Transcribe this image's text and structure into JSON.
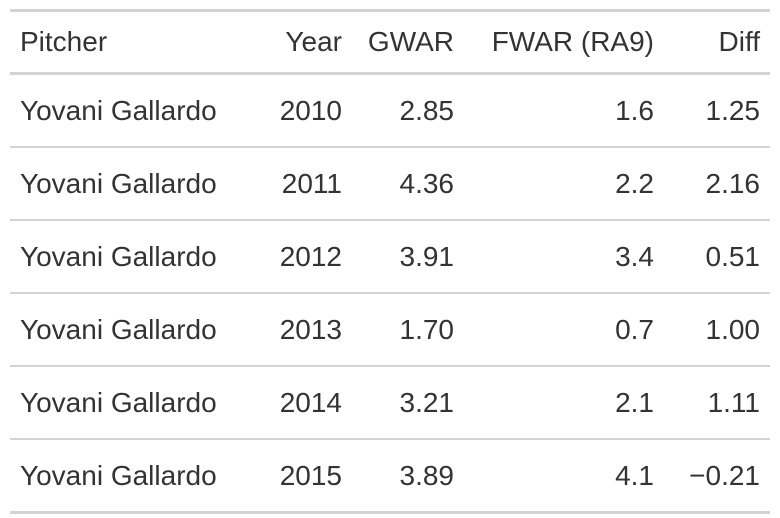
{
  "table": {
    "headers": {
      "pitcher": "Pitcher",
      "year": "Year",
      "gwar": "GWAR",
      "fwar": "FWAR (RA9)",
      "diff": "Diff"
    },
    "rows": [
      {
        "pitcher": "Yovani Gallardo",
        "year": "2010",
        "gwar": "2.85",
        "fwar": "1.6",
        "diff": "1.25"
      },
      {
        "pitcher": "Yovani Gallardo",
        "year": "2011",
        "gwar": "4.36",
        "fwar": "2.2",
        "diff": "2.16"
      },
      {
        "pitcher": "Yovani Gallardo",
        "year": "2012",
        "gwar": "3.91",
        "fwar": "3.4",
        "diff": "0.51"
      },
      {
        "pitcher": "Yovani Gallardo",
        "year": "2013",
        "gwar": "1.70",
        "fwar": "0.7",
        "diff": "1.00"
      },
      {
        "pitcher": "Yovani Gallardo",
        "year": "2014",
        "gwar": "3.21",
        "fwar": "2.1",
        "diff": "1.11"
      },
      {
        "pitcher": "Yovani Gallardo",
        "year": "2015",
        "gwar": "3.89",
        "fwar": "4.1",
        "diff": "−0.21"
      }
    ]
  }
}
